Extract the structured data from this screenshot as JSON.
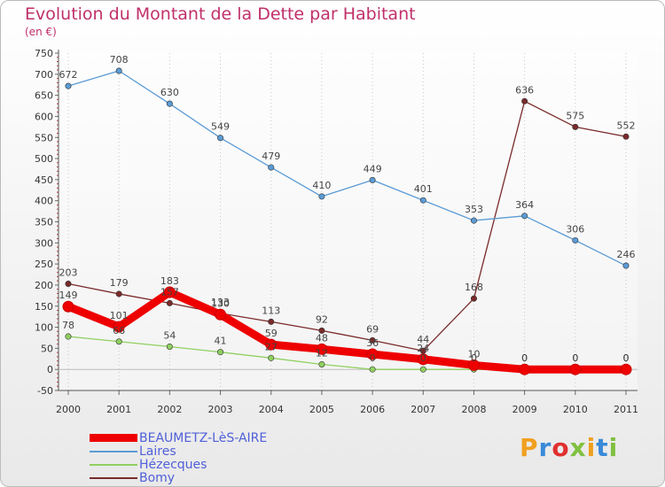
{
  "title": "Evolution du Montant de la Dette par Habitant",
  "subtitle": "(en €)",
  "logo_text": "Proxiti",
  "chart_data": {
    "type": "line",
    "title": "Evolution du Montant de la Dette par Habitant",
    "ylabel": "(en €)",
    "xlabel": "",
    "x": [
      "2000",
      "2001",
      "2002",
      "2003",
      "2004",
      "2005",
      "2006",
      "2007",
      "2008",
      "2009",
      "2010",
      "2011"
    ],
    "ylim": [
      -50,
      750
    ],
    "yticks": [
      -50,
      0,
      50,
      100,
      150,
      200,
      250,
      300,
      350,
      400,
      450,
      500,
      550,
      600,
      650,
      700,
      750
    ],
    "grid": "vertical dotted",
    "legend_position": "bottom-left",
    "series": [
      {
        "name": "BEAUMETZ-LèS-AIRE",
        "color": "#ee0000",
        "values": [
          149,
          101,
          183,
          130,
          59,
          48,
          36,
          24,
          10,
          0,
          0,
          0
        ]
      },
      {
        "name": "Laires",
        "color": "#5b9bd5",
        "values": [
          672,
          708,
          630,
          549,
          479,
          410,
          449,
          401,
          353,
          364,
          306,
          246
        ]
      },
      {
        "name": "Hézecques",
        "color": "#90d060",
        "values": [
          78,
          66,
          54,
          41,
          27,
          12,
          0,
          0,
          0,
          0,
          0,
          0
        ]
      },
      {
        "name": "Bomy",
        "color": "#7a2a2a",
        "values": [
          203,
          179,
          157,
          133,
          113,
          92,
          69,
          44,
          168,
          636,
          575,
          552
        ]
      }
    ]
  }
}
